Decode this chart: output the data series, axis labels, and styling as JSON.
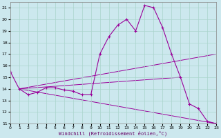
{
  "xlabel": "Windchill (Refroidissement éolien,°C)",
  "bg_color": "#cce8ee",
  "grid_color": "#aad4cc",
  "line_color": "#990099",
  "xlim": [
    0,
    23
  ],
  "ylim": [
    11,
    21.5
  ],
  "xticks": [
    0,
    1,
    2,
    3,
    4,
    5,
    6,
    7,
    8,
    9,
    10,
    11,
    12,
    13,
    14,
    15,
    16,
    17,
    18,
    19,
    20,
    21,
    22,
    23
  ],
  "yticks": [
    11,
    12,
    13,
    14,
    15,
    16,
    17,
    18,
    19,
    20,
    21
  ],
  "main_curve": {
    "x": [
      0,
      1,
      2,
      3,
      4,
      5,
      6,
      7,
      8,
      9,
      10,
      11,
      12,
      13,
      14,
      15,
      16,
      17,
      18,
      19,
      20,
      21,
      22,
      23
    ],
    "y": [
      15.5,
      14.0,
      13.5,
      13.7,
      14.1,
      14.1,
      13.9,
      13.8,
      13.5,
      13.5,
      17.0,
      18.5,
      19.5,
      20.0,
      19.0,
      21.2,
      21.0,
      19.3,
      17.0,
      15.0,
      12.7,
      12.3,
      11.2,
      11.0
    ]
  },
  "straight_lines": [
    {
      "x": [
        1,
        23
      ],
      "y": [
        14.0,
        17.0
      ]
    },
    {
      "x": [
        1,
        19
      ],
      "y": [
        14.0,
        15.0
      ]
    },
    {
      "x": [
        1,
        23
      ],
      "y": [
        14.0,
        11.0
      ]
    }
  ]
}
